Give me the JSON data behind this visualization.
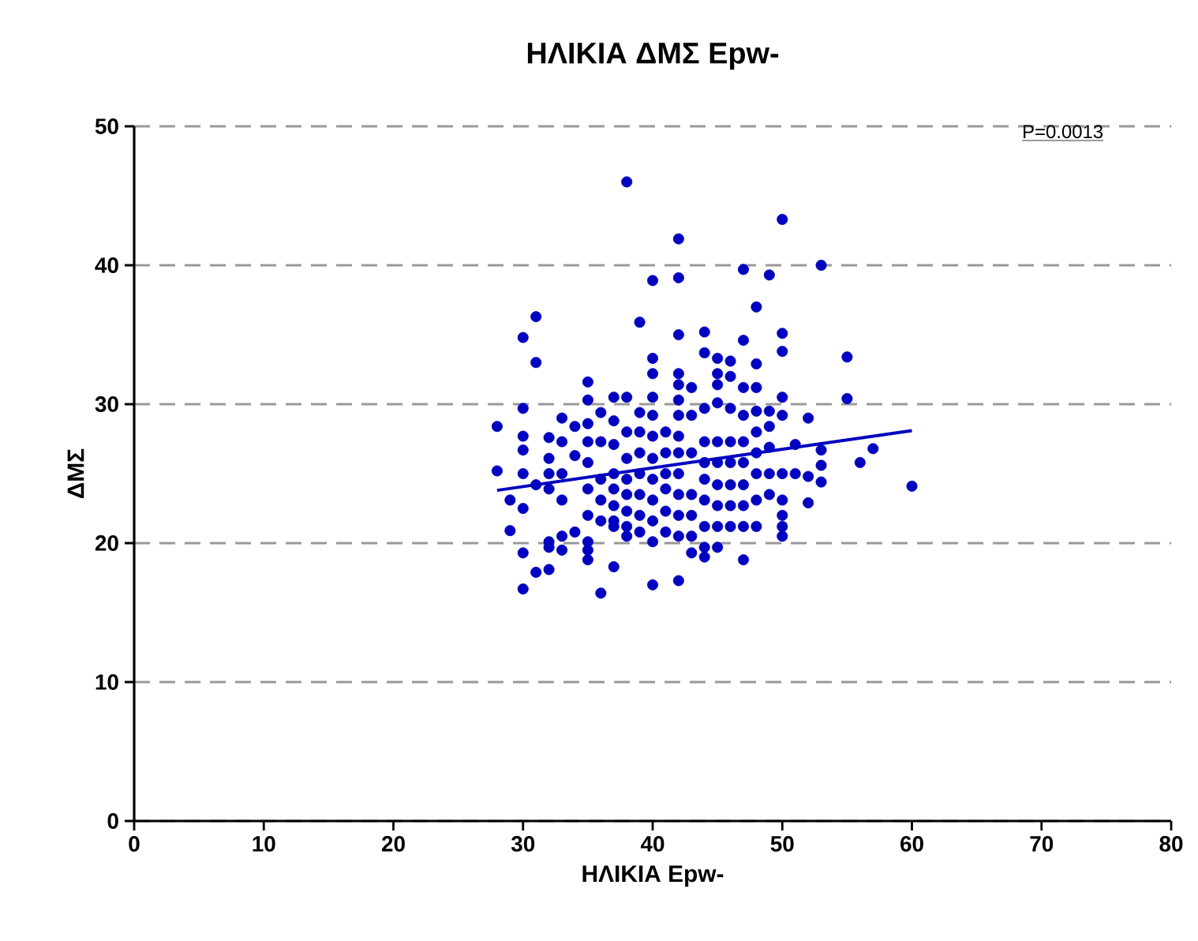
{
  "chart_data": {
    "type": "scatter",
    "title": "ΗΛΙΚΙΑ ΔΜΣ Epw-",
    "xlabel": "ΗΛΙΚΙΑ Epw-",
    "ylabel": "ΔΜΣ",
    "xlim": [
      0,
      80
    ],
    "ylim": [
      0,
      50
    ],
    "xticks": [
      0,
      10,
      20,
      30,
      40,
      50,
      60,
      70,
      80
    ],
    "yticks": [
      0,
      10,
      20,
      30,
      40,
      50
    ],
    "grid": "y",
    "annotations": [
      "P=0.0013"
    ],
    "series": [
      {
        "marker": "circle",
        "color": "#0000c0",
        "x": [
          38,
          50,
          42,
          53,
          47,
          49,
          40,
          42,
          48,
          31,
          39,
          30,
          31,
          44,
          42,
          47,
          50,
          50,
          55,
          55,
          60,
          57,
          56,
          28,
          28,
          30,
          30,
          36,
          40,
          42,
          31,
          32,
          37,
          47,
          44,
          29,
          30,
          35,
          43,
          53,
          53,
          53,
          52,
          52,
          52,
          32,
          32,
          32,
          32,
          32,
          32,
          33,
          33,
          33,
          33,
          33,
          33,
          34,
          34,
          34,
          35,
          35,
          35,
          35,
          35,
          35,
          35,
          35,
          35,
          36,
          36,
          36,
          36,
          36,
          37,
          37,
          37,
          37,
          37,
          37,
          37,
          37,
          38,
          38,
          38,
          38,
          38,
          38,
          38,
          38,
          39,
          39,
          39,
          39,
          39,
          39,
          39,
          40,
          40,
          40,
          40,
          40,
          40,
          40,
          40,
          40,
          40,
          41,
          41,
          41,
          41,
          41,
          41,
          42,
          42,
          42,
          42,
          42,
          42,
          42,
          42,
          42,
          42,
          43,
          43,
          43,
          43,
          43,
          43,
          44,
          44,
          44,
          44,
          44,
          44,
          44,
          44,
          45,
          45,
          45,
          45,
          45,
          45,
          45,
          45,
          45,
          45,
          46,
          46,
          46,
          46,
          46,
          46,
          46,
          46,
          47,
          47,
          47,
          47,
          47,
          47,
          47,
          48,
          48,
          48,
          48,
          48,
          48,
          48,
          48,
          49,
          49,
          49,
          49,
          49,
          50,
          50,
          50,
          50,
          50,
          50,
          50,
          51,
          51,
          31,
          30,
          30,
          30,
          30,
          29
        ],
        "values": [
          46.0,
          43.3,
          41.9,
          40.0,
          39.7,
          39.3,
          38.9,
          39.1,
          37.0,
          36.3,
          35.9,
          34.8,
          33.0,
          35.2,
          35.0,
          34.6,
          35.1,
          33.8,
          33.4,
          30.4,
          24.1,
          26.8,
          25.8,
          28.4,
          25.2,
          29.7,
          16.7,
          16.4,
          17.0,
          17.3,
          17.9,
          18.1,
          18.3,
          18.8,
          19.0,
          20.9,
          19.3,
          18.8,
          19.3,
          26.7,
          25.6,
          24.4,
          24.8,
          22.9,
          29.0,
          27.6,
          26.1,
          25.0,
          23.9,
          20.1,
          19.7,
          29.0,
          27.3,
          25.0,
          23.1,
          20.5,
          19.5,
          28.4,
          26.3,
          20.8,
          31.6,
          30.3,
          28.6,
          27.3,
          25.8,
          23.9,
          22.0,
          20.1,
          19.5,
          29.4,
          27.3,
          24.6,
          23.1,
          21.6,
          30.5,
          28.8,
          27.1,
          25.0,
          23.9,
          22.7,
          21.6,
          21.2,
          30.5,
          28.0,
          26.1,
          24.6,
          23.5,
          22.3,
          21.2,
          20.5,
          29.4,
          28.0,
          26.5,
          25.0,
          23.5,
          22.0,
          20.8,
          33.3,
          32.2,
          30.5,
          29.2,
          27.7,
          26.1,
          24.6,
          23.1,
          21.6,
          20.1,
          28.0,
          26.5,
          25.0,
          23.9,
          22.3,
          20.8,
          32.2,
          31.4,
          30.3,
          29.2,
          27.7,
          26.5,
          25.0,
          23.5,
          22.0,
          20.5,
          31.2,
          29.2,
          26.5,
          23.5,
          22.0,
          20.5,
          33.7,
          29.7,
          27.3,
          25.8,
          24.6,
          23.1,
          21.2,
          19.7,
          33.3,
          32.2,
          31.4,
          30.1,
          27.3,
          25.8,
          24.2,
          22.7,
          21.2,
          19.7,
          33.1,
          32.0,
          29.7,
          27.3,
          25.8,
          24.2,
          22.7,
          21.2,
          31.2,
          29.2,
          27.3,
          25.8,
          24.2,
          22.7,
          21.2,
          32.9,
          31.2,
          29.5,
          28.0,
          26.5,
          25.0,
          23.1,
          21.2,
          29.5,
          28.4,
          26.9,
          25.0,
          23.5,
          30.5,
          29.2,
          25.0,
          23.1,
          22.0,
          21.2,
          20.5,
          27.1,
          25.0,
          24.2,
          27.7,
          26.7,
          25.0,
          22.5,
          23.1
        ]
      },
      {
        "type": "line",
        "marker": "none",
        "color": "#0000c0",
        "x": [
          28,
          60
        ],
        "values": [
          23.8,
          28.1
        ]
      }
    ]
  }
}
